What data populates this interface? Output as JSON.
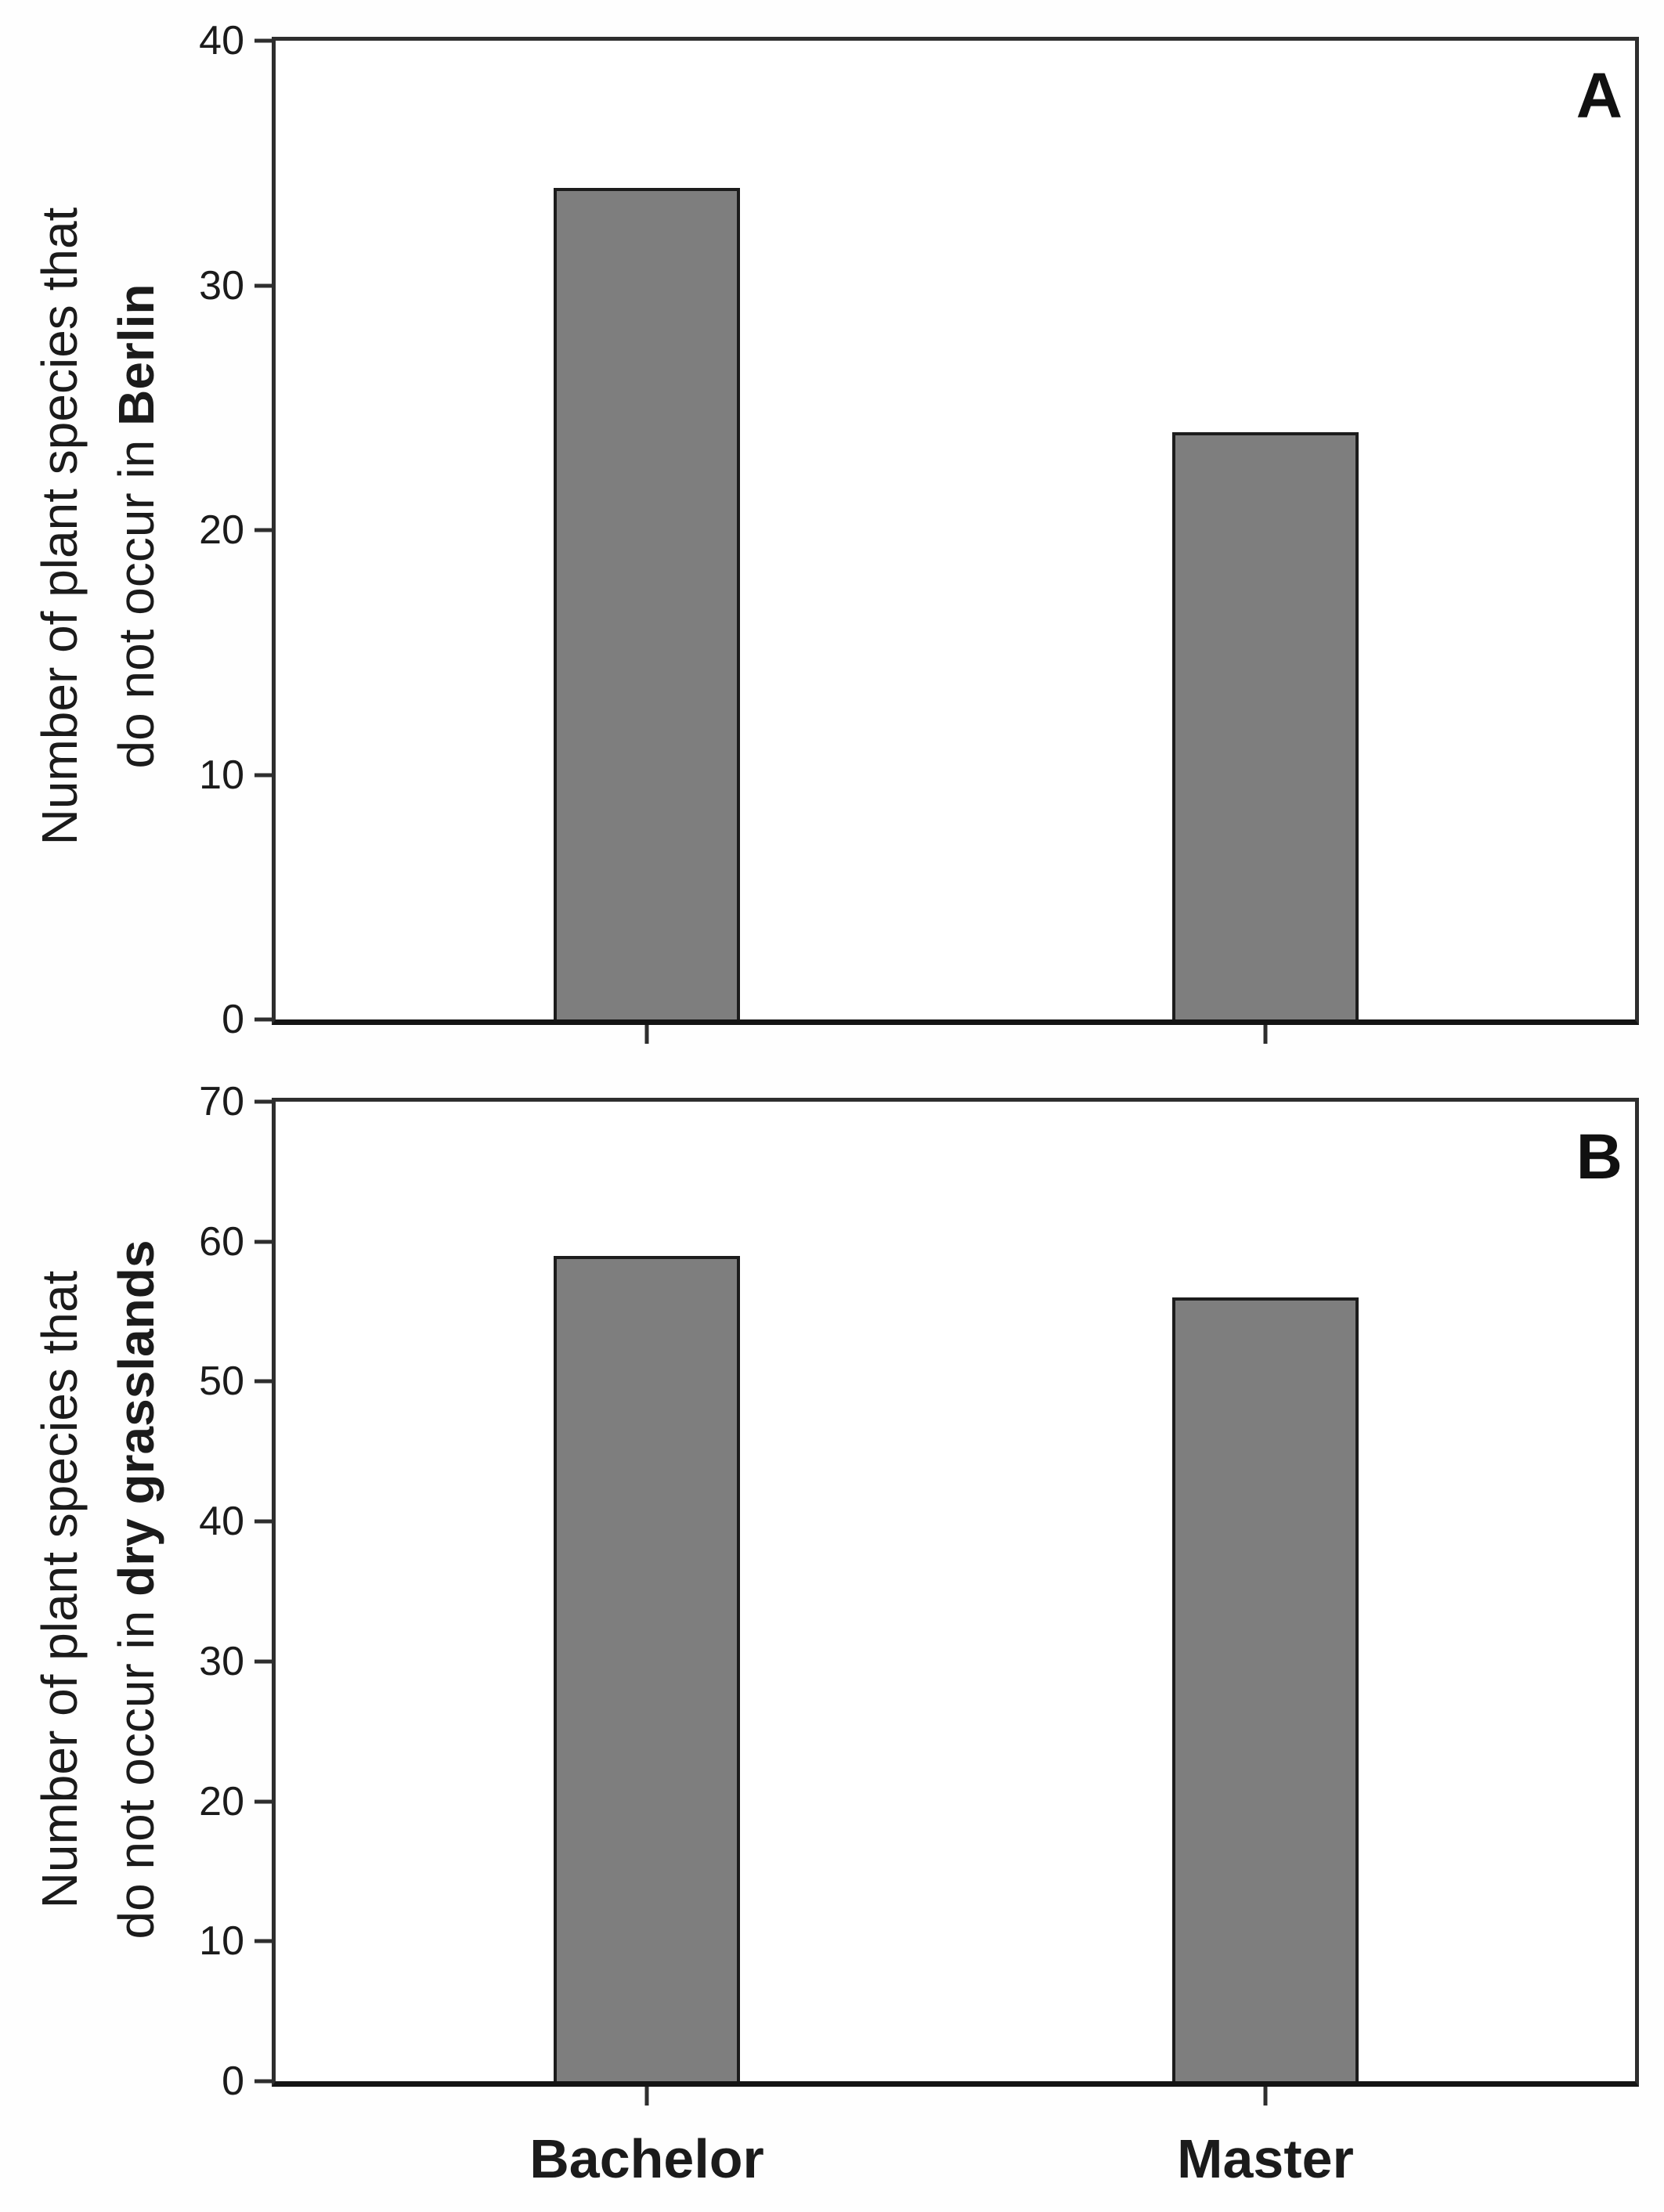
{
  "figure": {
    "background": "#fefefe",
    "axis_color": "#2e2e2e",
    "baseline_color": "#141414",
    "bar_fill": "#7e7e7e",
    "bar_border": "#1c1c1c",
    "text_color": "#1b1b1b"
  },
  "categories": [
    "Bachelor",
    "Master"
  ],
  "chart_data": [
    {
      "type": "bar",
      "panel_label": "A",
      "categories": [
        "Bachelor",
        "Master"
      ],
      "values": [
        34,
        24
      ],
      "ylabel_line1": "Number of plant species that",
      "ylabel_line2_regular": "do not occur in ",
      "ylabel_line2_bold": "Berlin",
      "xlabel": "",
      "ylim": [
        0,
        40
      ],
      "yticks": [
        0,
        10,
        20,
        30,
        40
      ],
      "grid": false,
      "legend": "none",
      "bar_width_frac": 0.137,
      "bar_center_fracs": [
        0.273,
        0.728
      ]
    },
    {
      "type": "bar",
      "panel_label": "B",
      "categories": [
        "Bachelor",
        "Master"
      ],
      "values": [
        59,
        56
      ],
      "ylabel_line1": "Number of plant species that",
      "ylabel_line2_regular": "do not occur in ",
      "ylabel_line2_bold": "dry grasslands",
      "xlabel": "",
      "ylim": [
        0,
        70
      ],
      "yticks": [
        0,
        10,
        20,
        30,
        40,
        50,
        60,
        70
      ],
      "grid": false,
      "legend": "none",
      "bar_width_frac": 0.137,
      "bar_center_fracs": [
        0.273,
        0.728
      ]
    }
  ]
}
